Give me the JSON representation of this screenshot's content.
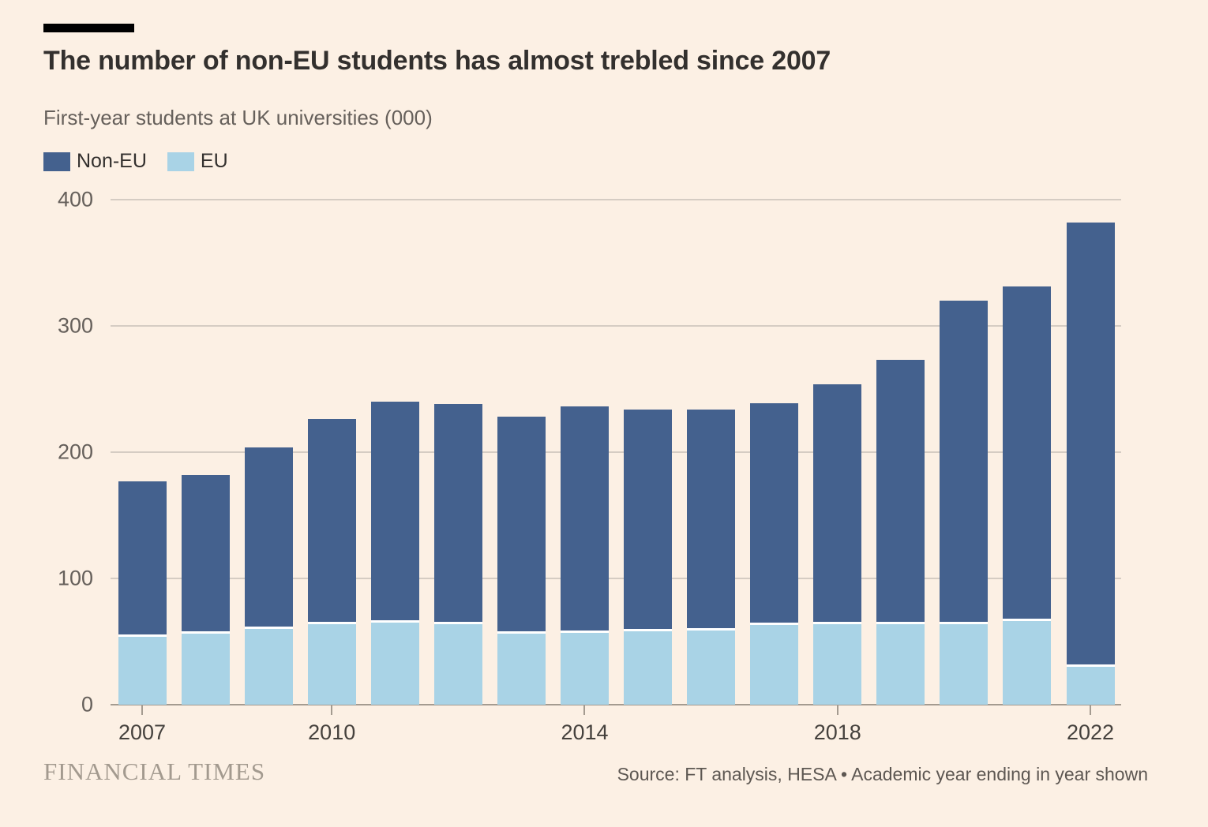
{
  "header": {
    "title": "The number of non-EU students has almost trebled since 2007",
    "subtitle": "First-year students at UK universities (000)"
  },
  "legend": {
    "items": [
      {
        "label": "Non-EU",
        "color": "#44618E"
      },
      {
        "label": "EU",
        "color": "#A9D3E6"
      }
    ]
  },
  "chart_data": {
    "type": "bar",
    "stacked": true,
    "title": "The number of non-EU students has almost trebled since 2007",
    "subtitle": "First-year students at UK universities (000)",
    "categories": [
      2007,
      2008,
      2009,
      2010,
      2011,
      2012,
      2013,
      2014,
      2015,
      2016,
      2017,
      2018,
      2019,
      2020,
      2021,
      2022
    ],
    "series": [
      {
        "name": "EU",
        "color": "#A9D3E6",
        "values": [
          54,
          56,
          60,
          64,
          65,
          64,
          56,
          57,
          58,
          59,
          63,
          64,
          64,
          64,
          66,
          30
        ]
      },
      {
        "name": "Non-EU",
        "color": "#44618E",
        "values": [
          123,
          126,
          144,
          162,
          175,
          174,
          172,
          179,
          176,
          175,
          176,
          190,
          209,
          256,
          265,
          352
        ]
      }
    ],
    "totals": [
      177,
      182,
      204,
      226,
      240,
      238,
      228,
      236,
      234,
      234,
      239,
      254,
      273,
      320,
      331,
      382
    ],
    "ylim": [
      0,
      400
    ],
    "y_ticks": [
      0,
      100,
      200,
      300,
      400
    ],
    "x_tick_labels": [
      "2007",
      "2010",
      "2014",
      "2018",
      "2022"
    ],
    "x_tick_indices": [
      0,
      3,
      7,
      11,
      15
    ],
    "grid": true,
    "legend_position": "top-left"
  },
  "footer": {
    "brand": "FINANCIAL TIMES",
    "source": "Source: FT analysis, HESA • Academic year ending in year shown"
  },
  "colors": {
    "background": "#FCF0E4",
    "non_eu_bar": "#44618E",
    "eu_bar": "#A9D3E6",
    "gridline": "#D5CCC3",
    "axis": "#A49B90",
    "title_text": "#33302E",
    "muted_text": "#66605B",
    "separator": "#FFFFFF"
  }
}
